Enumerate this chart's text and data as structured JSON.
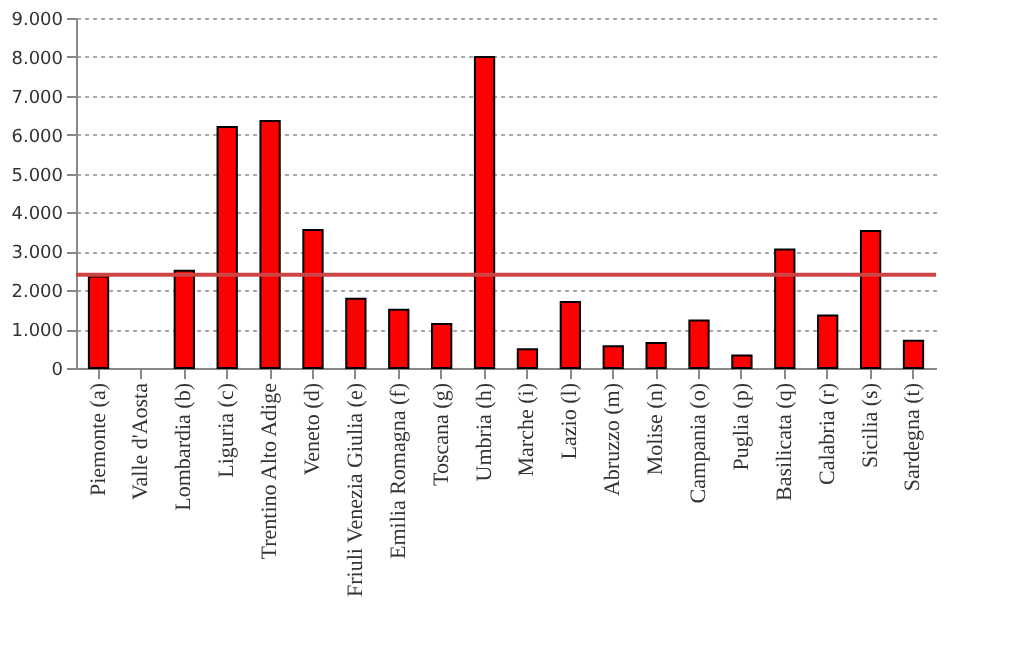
{
  "chart_data": {
    "type": "bar",
    "categories": [
      "Piemonte (a)",
      "Valle d'Aosta",
      "Lombardia (b)",
      "Liguria (c)",
      "Trentino Alto Adige",
      "Veneto (d)",
      "Friuli Venezia Giulia (e)",
      "Emilia Romagna (f)",
      "Toscana (g)",
      "Umbria (h)",
      "Marche (i)",
      "Lazio (l)",
      "Abruzzo (m)",
      "Molise (n)",
      "Campania (o)",
      "Puglia (p)",
      "Basilicata (q)",
      "Calabria (r)",
      "Sicilia (s)",
      "Sardegna (t)"
    ],
    "values": [
      2350,
      null,
      2500,
      6200,
      6350,
      3550,
      1780,
      1500,
      1130,
      8000,
      480,
      1700,
      560,
      640,
      1220,
      320,
      3050,
      1350,
      3520,
      700
    ],
    "color": "#ff0000",
    "ylim": [
      0,
      9000
    ],
    "yticks": [
      0,
      {
        "value": 1000,
        "label": "1.000"
      },
      {
        "value": 2000,
        "label": "2.000"
      },
      {
        "value": 3000,
        "label": "3.000"
      },
      {
        "value": 4000,
        "label": "4.000"
      },
      {
        "value": 5000,
        "label": "5.000"
      },
      {
        "value": 6000,
        "label": "6.000"
      },
      {
        "value": 7000,
        "label": "7.000"
      },
      {
        "value": 8000,
        "label": "8.000"
      },
      {
        "value": 9000,
        "label": "9.000"
      }
    ],
    "grid": "y",
    "ref_lines": [
      {
        "axis": "y",
        "value": 2400,
        "color": "#cc4444",
        "line_style": "solid"
      }
    ]
  }
}
